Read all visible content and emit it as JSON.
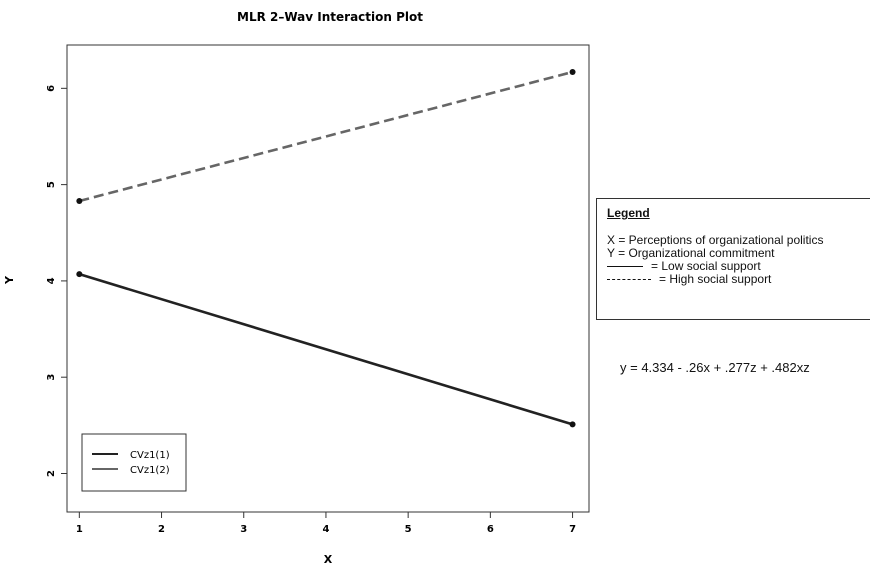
{
  "chart_data": {
    "type": "line",
    "title": "MLR 2–Wav Interaction Plot",
    "xlabel": "X",
    "ylabel": "Y",
    "xlim": [
      0.85,
      7.2
    ],
    "ylim": [
      1.6,
      6.45
    ],
    "xticks": [
      1,
      2,
      3,
      4,
      5,
      6,
      7
    ],
    "yticks": [
      2,
      3,
      4,
      5,
      6
    ],
    "grid": false,
    "legend_placement": "bottom-left",
    "series": [
      {
        "name": "CVz1(1)",
        "x": [
          1,
          7
        ],
        "values": [
          4.07,
          2.51
        ],
        "style": "solid",
        "color": "#222222"
      },
      {
        "name": "CVz1(2)",
        "x": [
          1,
          7
        ],
        "values": [
          4.83,
          6.17
        ],
        "style": "dashed",
        "color": "#666666"
      }
    ]
  },
  "side_legend": {
    "heading": "Legend",
    "x_def": "X = Perceptions of organizational politics",
    "y_def": "Y = Organizational commitment",
    "low": "= Low social support",
    "high": "= High social support"
  },
  "equation": "y = 4.334 - .26x + .277z + .482xz"
}
